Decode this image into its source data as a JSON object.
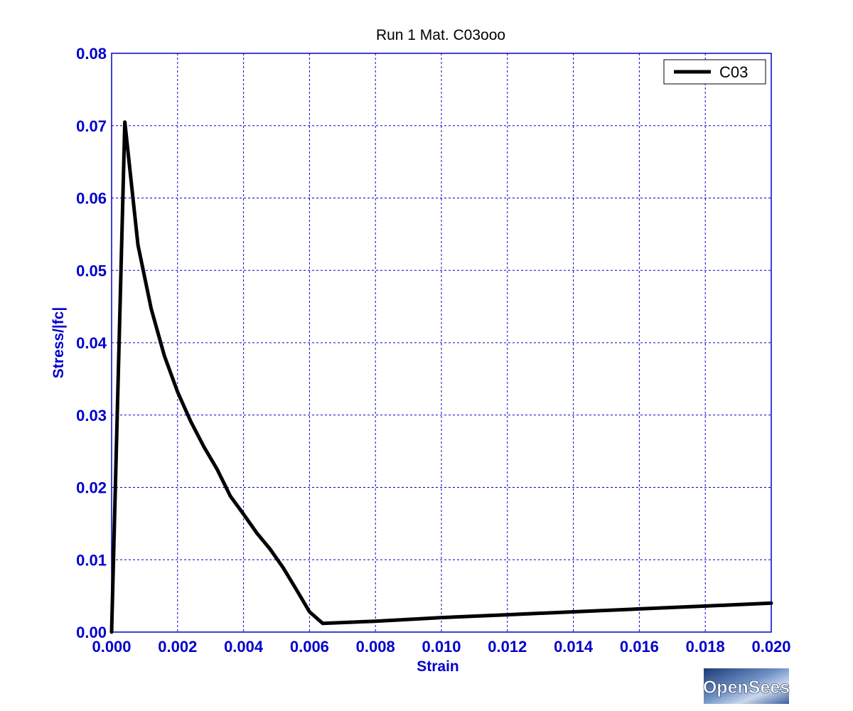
{
  "chart_data": {
    "type": "line",
    "title": "Run 1    Mat. C03ooo",
    "xlabel": "Strain",
    "ylabel": "Stress/|fc|",
    "xlim": [
      0.0,
      0.02
    ],
    "ylim": [
      0.0,
      0.08
    ],
    "x_ticks": [
      "0.000",
      "0.002",
      "0.004",
      "0.006",
      "0.008",
      "0.010",
      "0.012",
      "0.014",
      "0.016",
      "0.018",
      "0.020"
    ],
    "y_ticks": [
      "0.00",
      "0.01",
      "0.02",
      "0.03",
      "0.04",
      "0.05",
      "0.06",
      "0.07",
      "0.08"
    ],
    "grid": true,
    "legend_position": "top-right",
    "series": [
      {
        "name": "C03",
        "color": "#000000",
        "x": [
          0.0,
          0.0004,
          0.0008,
          0.0012,
          0.0016,
          0.002,
          0.0024,
          0.0028,
          0.0032,
          0.0036,
          0.004,
          0.0044,
          0.0048,
          0.0052,
          0.0056,
          0.006,
          0.0064,
          0.008,
          0.01,
          0.012,
          0.014,
          0.016,
          0.018,
          0.02
        ],
        "y": [
          0.0,
          0.0705,
          0.0535,
          0.0447,
          0.0382,
          0.0332,
          0.0291,
          0.0256,
          0.0225,
          0.0188,
          0.0163,
          0.0137,
          0.0115,
          0.0089,
          0.0059,
          0.0028,
          0.0012,
          0.0015,
          0.002,
          0.0024,
          0.0028,
          0.0032,
          0.0036,
          0.004
        ]
      }
    ]
  },
  "colors": {
    "axis_text": "#0000cc",
    "grid": "#0000cc",
    "frame": "#0000cc",
    "line": "#000000"
  },
  "logo": {
    "text": "OpenSees",
    "icon": "opensees-logo"
  }
}
